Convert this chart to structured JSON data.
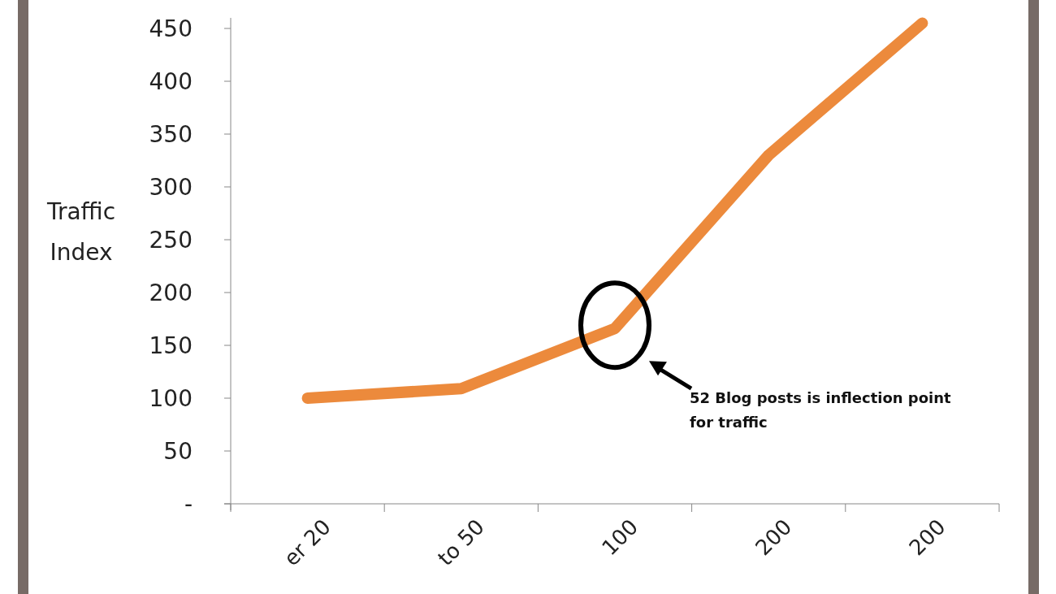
{
  "chart_data": {
    "type": "line",
    "ylabel": "Traffic Index",
    "categories": [
      "er 20",
      "to 50",
      "100",
      "200",
      "200"
    ],
    "series": [
      {
        "color": "#ec8a3c",
        "values": [
          100,
          109,
          166,
          330,
          455
        ]
      }
    ],
    "ylim": [
      0,
      460
    ],
    "yticks": [
      {
        "value": 0,
        "label": "-"
      },
      50,
      100,
      150,
      200,
      250,
      300,
      350,
      400,
      450
    ],
    "marker": "none",
    "line_style": "solid",
    "annotations": [
      "52 Blog posts is inflection point for traffic"
    ]
  }
}
